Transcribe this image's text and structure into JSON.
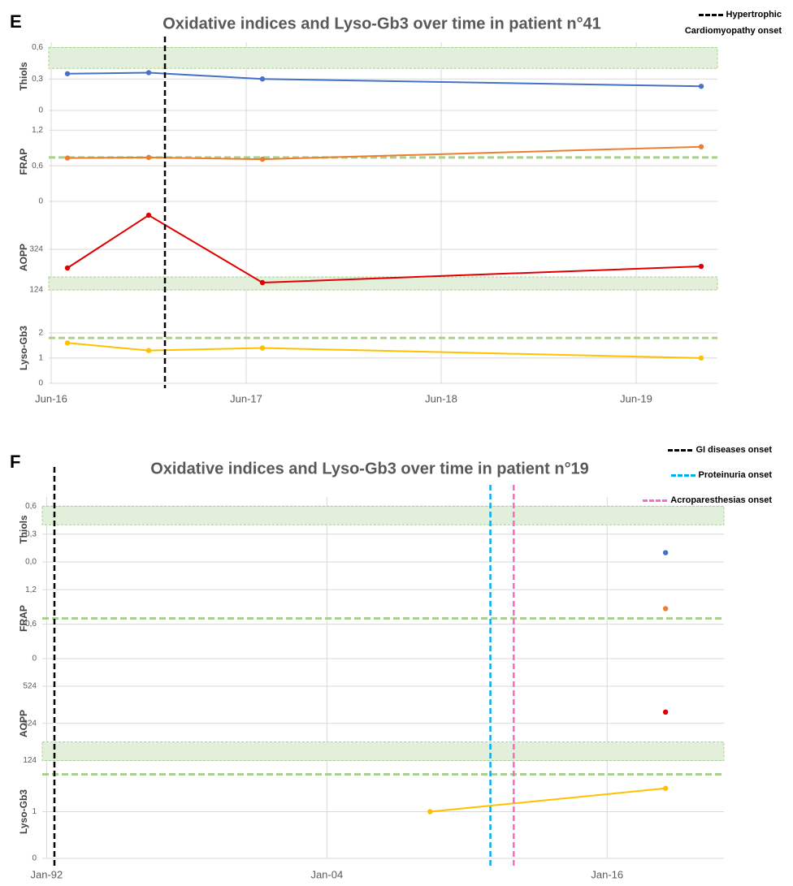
{
  "chart_data": [
    {
      "type": "line",
      "panel": "E",
      "title": "Oxidative indices and Lyso-Gb3 over time in patient n°41",
      "grid": true,
      "xlim": [
        "2016-05",
        "2019-11"
      ],
      "xticks": [
        {
          "value": "2016-06",
          "label": "Jun-16"
        },
        {
          "value": "2017-06",
          "label": "Jun-17"
        },
        {
          "value": "2018-06",
          "label": "Jun-18"
        },
        {
          "value": "2019-06",
          "label": "Jun-19"
        }
      ],
      "x": [
        "2016-07",
        "2016-12",
        "2017-07",
        "2019-10"
      ],
      "events": [
        {
          "name": "Hypertrophic Cardiomyopathy onset",
          "color": "#000000",
          "x": "2017-01"
        }
      ],
      "series": [
        {
          "name": "Thiols",
          "color": "#4472c4",
          "values": [
            0.35,
            0.36,
            0.3,
            0.23
          ],
          "ylim": [
            0,
            0.65
          ],
          "yticks": [
            0,
            {
              "value": 0.3,
              "label": "0,3"
            },
            {
              "value": 0.6,
              "label": "0,6"
            }
          ],
          "reference_band": [
            0.4,
            0.6
          ]
        },
        {
          "name": "FRAP",
          "color": "#ed7d31",
          "values": [
            0.73,
            0.74,
            0.71,
            0.92
          ],
          "ylim": [
            0,
            1.34
          ],
          "yticks": [
            0,
            {
              "value": 0.6,
              "label": "0,6"
            },
            {
              "value": 1.2,
              "label": "1,2"
            }
          ],
          "reference_line": 0.74
        },
        {
          "name": "AOPP",
          "color": "#e00000",
          "values": [
            232,
            492,
            160,
            240
          ],
          "ylim": [
            24,
            544
          ],
          "yticks": [
            124,
            324
          ],
          "reference_band": [
            124,
            188
          ]
        },
        {
          "name": "Lyso-Gb3",
          "color": "#ffc000",
          "values": [
            1.6,
            1.3,
            1.4,
            1.0
          ],
          "ylim": [
            0,
            2.8
          ],
          "yticks": [
            0,
            1,
            2
          ],
          "reference_line": 1.8
        }
      ]
    },
    {
      "type": "line",
      "panel": "F",
      "title": "Oxidative indices and Lyso-Gb3 over time in patient n°19",
      "grid": true,
      "xlim": [
        "1991-11",
        "2021-01"
      ],
      "xticks": [
        {
          "value": "1992-01",
          "label": "Jan-92"
        },
        {
          "value": "2004-01",
          "label": "Jan-04"
        },
        {
          "value": "2016-01",
          "label": "Jan-16"
        }
      ],
      "x": [
        "2008-06",
        "2018-07"
      ],
      "events": [
        {
          "name": "GI diseases onset",
          "color": "#000000",
          "x": "1992-05"
        },
        {
          "name": "Proteinuria onset",
          "color": "#00b0f0",
          "x": "2011-01"
        },
        {
          "name": "Acroparesthesias onset",
          "color": "#ff66cc",
          "x": "2012-01"
        }
      ],
      "series": [
        {
          "name": "Thiols",
          "color": "#4472c4",
          "values": [
            null,
            0.1
          ],
          "ylim": [
            0,
            0.7
          ],
          "yticks": [
            {
              "value": 0,
              "label": "0,0"
            },
            {
              "value": 0.3,
              "label": "0,3"
            },
            {
              "value": 0.6,
              "label": "0,6"
            }
          ],
          "reference_band": [
            0.4,
            0.6
          ]
        },
        {
          "name": "FRAP",
          "color": "#ed7d31",
          "values": [
            null,
            0.87
          ],
          "ylim": [
            0,
            1.4
          ],
          "yticks": [
            0,
            {
              "value": 0.6,
              "label": "0,6"
            },
            {
              "value": 1.2,
              "label": "1,2"
            }
          ],
          "reference_line": 0.7
        },
        {
          "name": "AOPP",
          "color": "#e00000",
          "values": [
            null,
            385
          ],
          "ylim": [
            100,
            546
          ],
          "yticks": [
            124,
            324,
            524
          ],
          "reference_band": [
            124,
            224
          ]
        },
        {
          "name": "Lyso-Gb3",
          "color": "#ffc000",
          "values": [
            1.0,
            1.5
          ],
          "ylim": [
            0,
            2
          ],
          "yticks": [
            0,
            1
          ],
          "reference_line": 1.8
        }
      ]
    }
  ]
}
